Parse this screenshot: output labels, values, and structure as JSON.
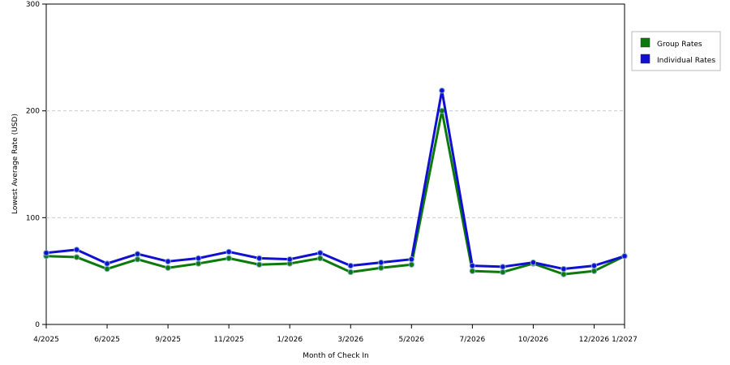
{
  "chart_data": {
    "type": "line",
    "title": "",
    "xlabel": "Month of Check In",
    "ylabel": "Lowest Average Rate (USD)",
    "ylim": [
      0,
      300
    ],
    "yticks": [
      0,
      100,
      200,
      300
    ],
    "grid": true,
    "legend_position": "top-right",
    "x": [
      "4/2025",
      "5/2025",
      "6/2025",
      "7/2025",
      "9/2025",
      "10/2025",
      "11/2025",
      "12/2025",
      "1/2026",
      "2/2026",
      "3/2026",
      "4/2026",
      "5/2026",
      "6/2026",
      "7/2026",
      "8/2026",
      "10/2026",
      "11/2026",
      "12/2026",
      "1/2027"
    ],
    "x_tick_labels": [
      "4/2025",
      "6/2025",
      "9/2025",
      "11/2025",
      "1/2026",
      "3/2026",
      "5/2026",
      "7/2026",
      "10/2026",
      "12/2026",
      "1/2027"
    ],
    "series": [
      {
        "name": "Group Rates",
        "color": "#0b7a0b",
        "values": [
          64,
          63,
          52,
          61,
          53,
          57,
          62,
          56,
          57,
          62,
          49,
          53,
          56,
          200,
          50,
          49,
          57,
          47,
          50,
          64
        ]
      },
      {
        "name": "Individual Rates",
        "color": "#1010d0",
        "values": [
          67,
          70,
          57,
          66,
          59,
          62,
          68,
          62,
          61,
          67,
          55,
          58,
          61,
          219,
          55,
          54,
          58,
          52,
          55,
          64
        ]
      }
    ]
  }
}
